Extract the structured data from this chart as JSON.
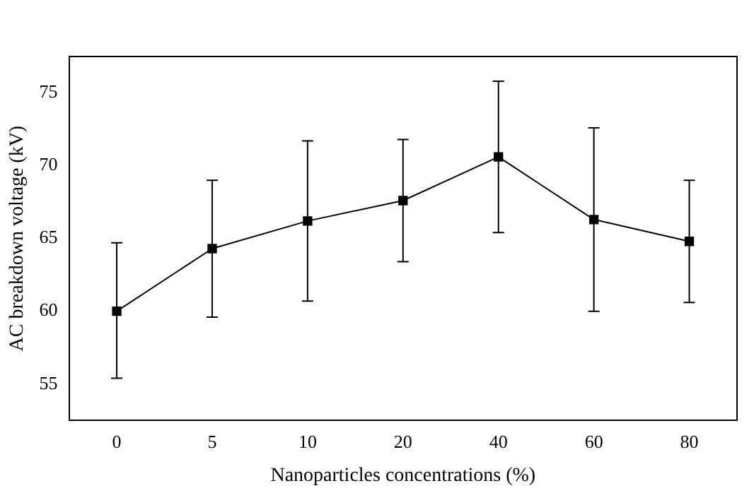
{
  "chart_data": {
    "type": "line",
    "xlabel": "Nanoparticles concentrations (%)",
    "ylabel": "AC breakdown voltage (kV)",
    "categories": [
      "0",
      "5",
      "10",
      "20",
      "40",
      "60",
      "80"
    ],
    "series": [
      {
        "color": "#000000",
        "values": [
          60.0,
          64.3,
          66.2,
          67.6,
          70.6,
          66.3,
          64.8
        ],
        "errors": [
          [
            55.4,
            64.7
          ],
          [
            59.6,
            69.0
          ],
          [
            60.7,
            71.7
          ],
          [
            63.4,
            71.8
          ],
          [
            65.4,
            75.8
          ],
          [
            60.0,
            72.6
          ],
          [
            60.6,
            69.0
          ]
        ]
      }
    ],
    "ylim": [
      52.5,
      77.5
    ],
    "yticks": [
      55,
      60,
      65,
      70,
      75
    ],
    "grid": false,
    "legend": false,
    "marker": "square",
    "line_style": "solid"
  }
}
